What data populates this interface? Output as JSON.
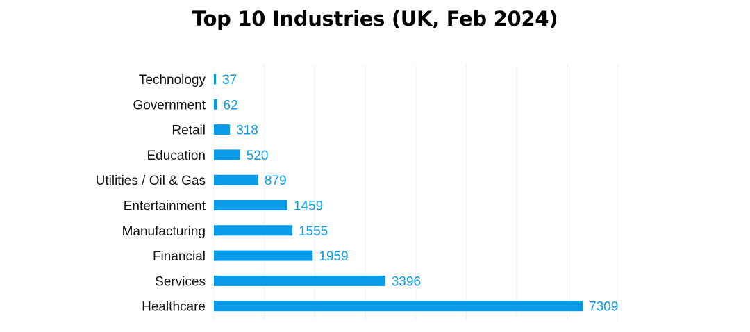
{
  "chart_data": {
    "type": "bar",
    "orientation": "horizontal",
    "title": "Top 10 Industries (UK, Feb 2024)",
    "categories": [
      "Technology",
      "Government",
      "Retail",
      "Education",
      "Utilities / Oil & Gas",
      "Entertainment",
      "Manufacturing",
      "Financial",
      "Services",
      "Healthcare"
    ],
    "values": [
      37,
      62,
      318,
      520,
      879,
      1459,
      1555,
      1959,
      3396,
      7309
    ],
    "xlim": [
      0,
      8000
    ],
    "xlabel": "",
    "ylabel": "",
    "grid": true,
    "legend": "none",
    "bar_color": "#0a9be6",
    "label_color": "#0a9be6",
    "grid_color": "#f0f0f0"
  }
}
